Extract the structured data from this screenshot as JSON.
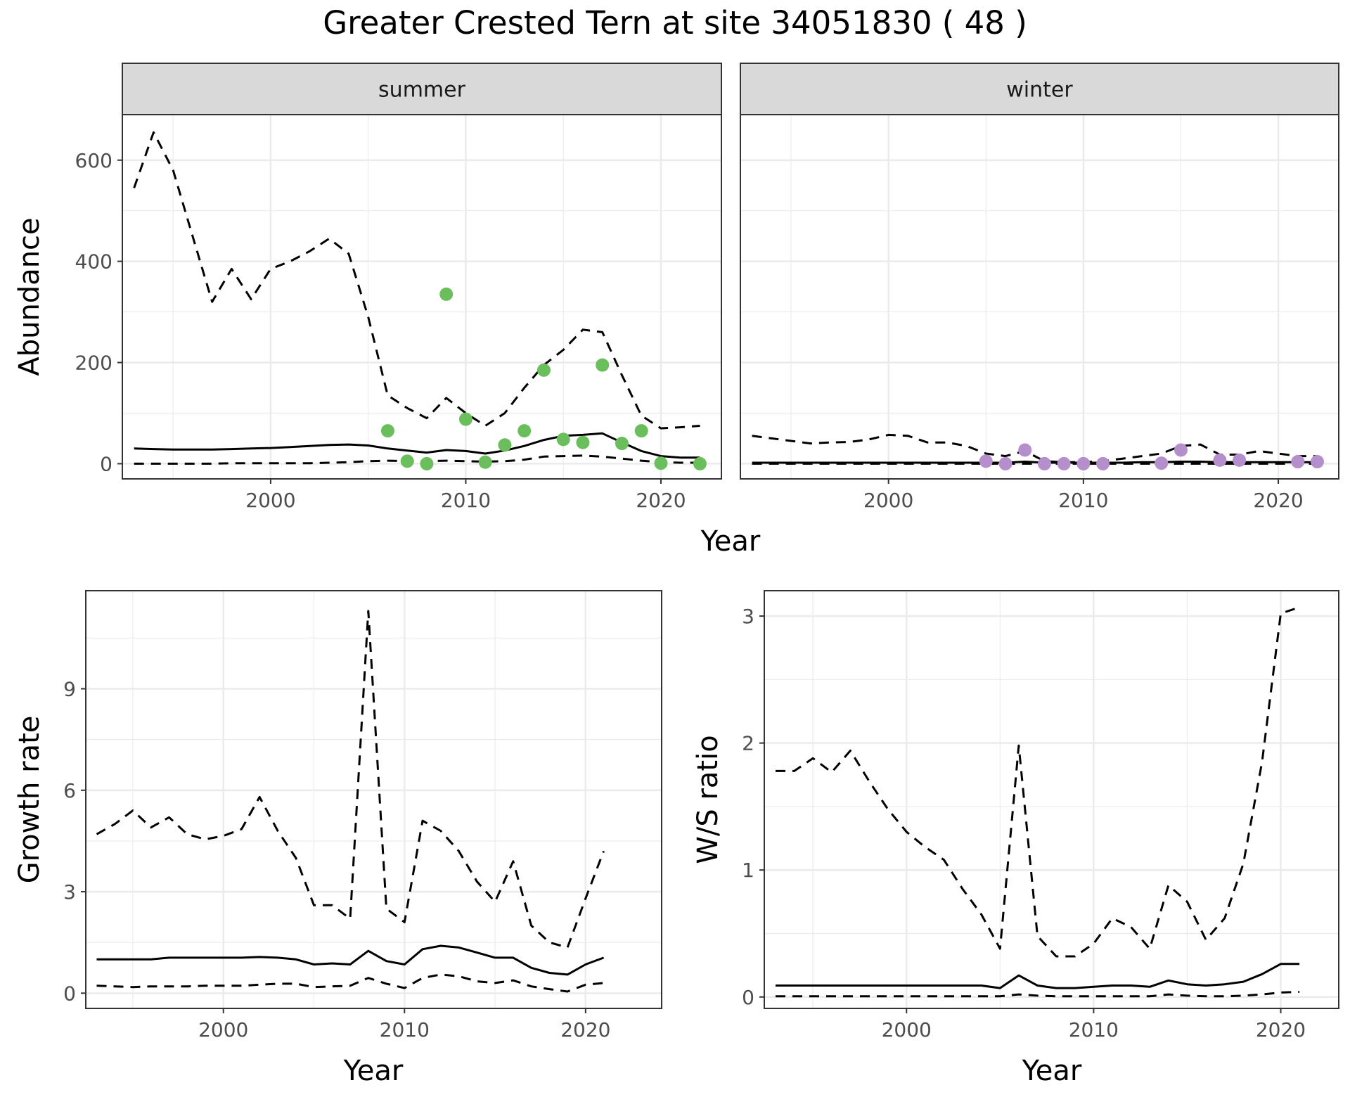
{
  "title": "Greater Crested Tern at site 34051830 ( 48 )",
  "colors": {
    "summer_points": "#6BBE5C",
    "winter_points": "#B48FCB",
    "lines": "#000000",
    "grid": "#EBEBEB",
    "strip": "#D9D9D9"
  },
  "chart_data": [
    {
      "id": "abundance-summer",
      "type": "line",
      "facet": "summer",
      "xlabel": "Year",
      "ylabel": "Abundance",
      "xlim": [
        1992.4,
        2023.1
      ],
      "ylim": [
        -30,
        690
      ],
      "xticks": [
        2000,
        2010,
        2020
      ],
      "yticks": [
        0,
        200,
        400,
        600
      ],
      "grid": true,
      "x": [
        1993,
        1994,
        1995,
        1996,
        1997,
        1998,
        1999,
        2000,
        2001,
        2002,
        2003,
        2004,
        2005,
        2006,
        2007,
        2008,
        2009,
        2010,
        2011,
        2012,
        2013,
        2014,
        2015,
        2016,
        2017,
        2018,
        2019,
        2020,
        2021,
        2022
      ],
      "series": [
        {
          "style": "dashed",
          "values": [
            545,
            655,
            580,
            450,
            320,
            385,
            325,
            385,
            400,
            420,
            445,
            415,
            290,
            135,
            110,
            90,
            130,
            100,
            75,
            100,
            150,
            195,
            225,
            265,
            260,
            175,
            95,
            70,
            72,
            75
          ]
        },
        {
          "style": "solid",
          "values": [
            30,
            29,
            28,
            28,
            28,
            29,
            30,
            31,
            33,
            35,
            37,
            38,
            36,
            30,
            26,
            22,
            27,
            25,
            20,
            26,
            35,
            47,
            55,
            57,
            60,
            42,
            25,
            15,
            12,
            12
          ]
        },
        {
          "style": "dashed",
          "values": [
            0,
            0,
            0,
            0,
            0,
            1,
            1,
            1,
            1,
            1,
            2,
            3,
            5,
            6,
            5,
            5,
            6,
            5,
            4,
            5,
            8,
            14,
            15,
            16,
            14,
            10,
            6,
            3,
            2,
            2
          ]
        }
      ],
      "points": {
        "x": [
          2006,
          2007,
          2008,
          2009,
          2010,
          2011,
          2012,
          2013,
          2014,
          2015,
          2016,
          2017,
          2018,
          2019,
          2020,
          2022
        ],
        "y": [
          65,
          5,
          0,
          335,
          88,
          3,
          37,
          65,
          185,
          48,
          42,
          195,
          40,
          65,
          1,
          0
        ]
      }
    },
    {
      "id": "abundance-winter",
      "type": "line",
      "facet": "winter",
      "xlabel": "Year",
      "ylabel": "",
      "xlim": [
        1992.4,
        2023.1
      ],
      "ylim": [
        -30,
        690
      ],
      "xticks": [
        2000,
        2010,
        2020
      ],
      "yticks": [],
      "grid": true,
      "x": [
        1993,
        1994,
        1995,
        1996,
        1997,
        1998,
        1999,
        2000,
        2001,
        2002,
        2003,
        2004,
        2005,
        2006,
        2007,
        2008,
        2009,
        2010,
        2011,
        2012,
        2013,
        2014,
        2015,
        2016,
        2017,
        2018,
        2019,
        2020,
        2021,
        2022
      ],
      "series": [
        {
          "style": "dashed",
          "values": [
            55,
            50,
            45,
            40,
            42,
            43,
            48,
            57,
            55,
            42,
            42,
            35,
            20,
            15,
            25,
            5,
            3,
            3,
            5,
            10,
            15,
            20,
            35,
            38,
            18,
            18,
            25,
            20,
            15,
            15
          ]
        },
        {
          "style": "solid",
          "values": [
            2,
            2,
            2,
            2,
            2,
            2,
            2,
            2,
            2,
            2,
            2,
            2,
            2,
            2,
            4,
            2,
            2,
            2,
            2,
            2,
            3,
            3,
            4,
            4,
            3,
            3,
            3,
            3,
            3,
            3
          ]
        },
        {
          "style": "dashed",
          "values": [
            0,
            0,
            0,
            0,
            0,
            0,
            0,
            0,
            0,
            0,
            0,
            0,
            0,
            0,
            0,
            0,
            0,
            0,
            0,
            0,
            0,
            0,
            0,
            0,
            0,
            0,
            0,
            0,
            0,
            0
          ]
        }
      ],
      "points": {
        "x": [
          2005,
          2006,
          2007,
          2008,
          2009,
          2010,
          2011,
          2014,
          2015,
          2017,
          2018,
          2021,
          2022
        ],
        "y": [
          5,
          0,
          27,
          0,
          0,
          0,
          0,
          1,
          27,
          7,
          7,
          4,
          4
        ]
      }
    },
    {
      "id": "growth-rate",
      "type": "line",
      "xlabel": "Year",
      "ylabel": "Growth rate",
      "xlim": [
        1992.4,
        2024.2
      ],
      "ylim": [
        -0.45,
        11.9
      ],
      "xticks": [
        2000,
        2010,
        2020
      ],
      "yticks": [
        0,
        3,
        6,
        9
      ],
      "grid": true,
      "x": [
        1993,
        1994,
        1995,
        1996,
        1997,
        1998,
        1999,
        2000,
        2001,
        2002,
        2003,
        2004,
        2005,
        2006,
        2007,
        2008,
        2009,
        2010,
        2011,
        2012,
        2013,
        2014,
        2015,
        2016,
        2017,
        2018,
        2019,
        2020,
        2021
      ],
      "series": [
        {
          "style": "dashed",
          "values": [
            4.7,
            5.0,
            5.4,
            4.9,
            5.2,
            4.7,
            4.55,
            4.65,
            4.85,
            5.8,
            4.8,
            4.0,
            2.6,
            2.6,
            2.2,
            11.3,
            2.5,
            2.1,
            5.1,
            4.8,
            4.2,
            3.3,
            2.7,
            3.9,
            2.0,
            1.5,
            1.35,
            2.8,
            4.2
          ]
        },
        {
          "style": "solid",
          "values": [
            1.0,
            1.0,
            1.0,
            1.0,
            1.05,
            1.05,
            1.05,
            1.05,
            1.05,
            1.07,
            1.05,
            1.0,
            0.85,
            0.88,
            0.85,
            1.25,
            0.95,
            0.85,
            1.3,
            1.4,
            1.35,
            1.2,
            1.05,
            1.05,
            0.75,
            0.6,
            0.55,
            0.85,
            1.05
          ]
        },
        {
          "style": "dashed",
          "values": [
            0.22,
            0.2,
            0.18,
            0.2,
            0.2,
            0.2,
            0.22,
            0.22,
            0.22,
            0.25,
            0.28,
            0.28,
            0.18,
            0.2,
            0.22,
            0.45,
            0.28,
            0.15,
            0.45,
            0.55,
            0.5,
            0.35,
            0.3,
            0.38,
            0.2,
            0.12,
            0.05,
            0.25,
            0.3
          ]
        }
      ]
    },
    {
      "id": "ws-ratio",
      "type": "line",
      "xlabel": "Year",
      "ylabel": "W/S ratio",
      "xlim": [
        1992.4,
        2023.1
      ],
      "ylim": [
        -0.09,
        3.2
      ],
      "xticks": [
        2000,
        2010,
        2020
      ],
      "yticks": [
        0,
        1,
        2,
        3
      ],
      "grid": true,
      "x": [
        1993,
        1994,
        1995,
        1996,
        1997,
        1998,
        1999,
        2000,
        2001,
        2002,
        2003,
        2004,
        2005,
        2006,
        2007,
        2008,
        2009,
        2010,
        2011,
        2012,
        2013,
        2014,
        2015,
        2016,
        2017,
        2018,
        2019,
        2020,
        2021
      ],
      "series": [
        {
          "style": "dashed",
          "values": [
            1.78,
            1.78,
            1.88,
            1.77,
            1.94,
            1.7,
            1.48,
            1.3,
            1.18,
            1.08,
            0.85,
            0.65,
            0.38,
            1.98,
            0.48,
            0.32,
            0.32,
            0.42,
            0.62,
            0.55,
            0.38,
            0.88,
            0.75,
            0.45,
            0.62,
            1.05,
            1.85,
            3.02,
            3.07
          ]
        },
        {
          "style": "solid",
          "values": [
            0.09,
            0.09,
            0.09,
            0.09,
            0.09,
            0.09,
            0.09,
            0.09,
            0.09,
            0.09,
            0.09,
            0.09,
            0.07,
            0.17,
            0.09,
            0.07,
            0.07,
            0.08,
            0.09,
            0.09,
            0.08,
            0.13,
            0.1,
            0.09,
            0.1,
            0.12,
            0.18,
            0.26,
            0.26
          ]
        },
        {
          "style": "dashed",
          "values": [
            0.005,
            0.005,
            0.005,
            0.005,
            0.005,
            0.005,
            0.005,
            0.005,
            0.005,
            0.005,
            0.005,
            0.005,
            0.005,
            0.02,
            0.01,
            0.005,
            0.005,
            0.005,
            0.005,
            0.005,
            0.005,
            0.02,
            0.01,
            0.005,
            0.005,
            0.01,
            0.02,
            0.035,
            0.04
          ]
        }
      ]
    }
  ]
}
